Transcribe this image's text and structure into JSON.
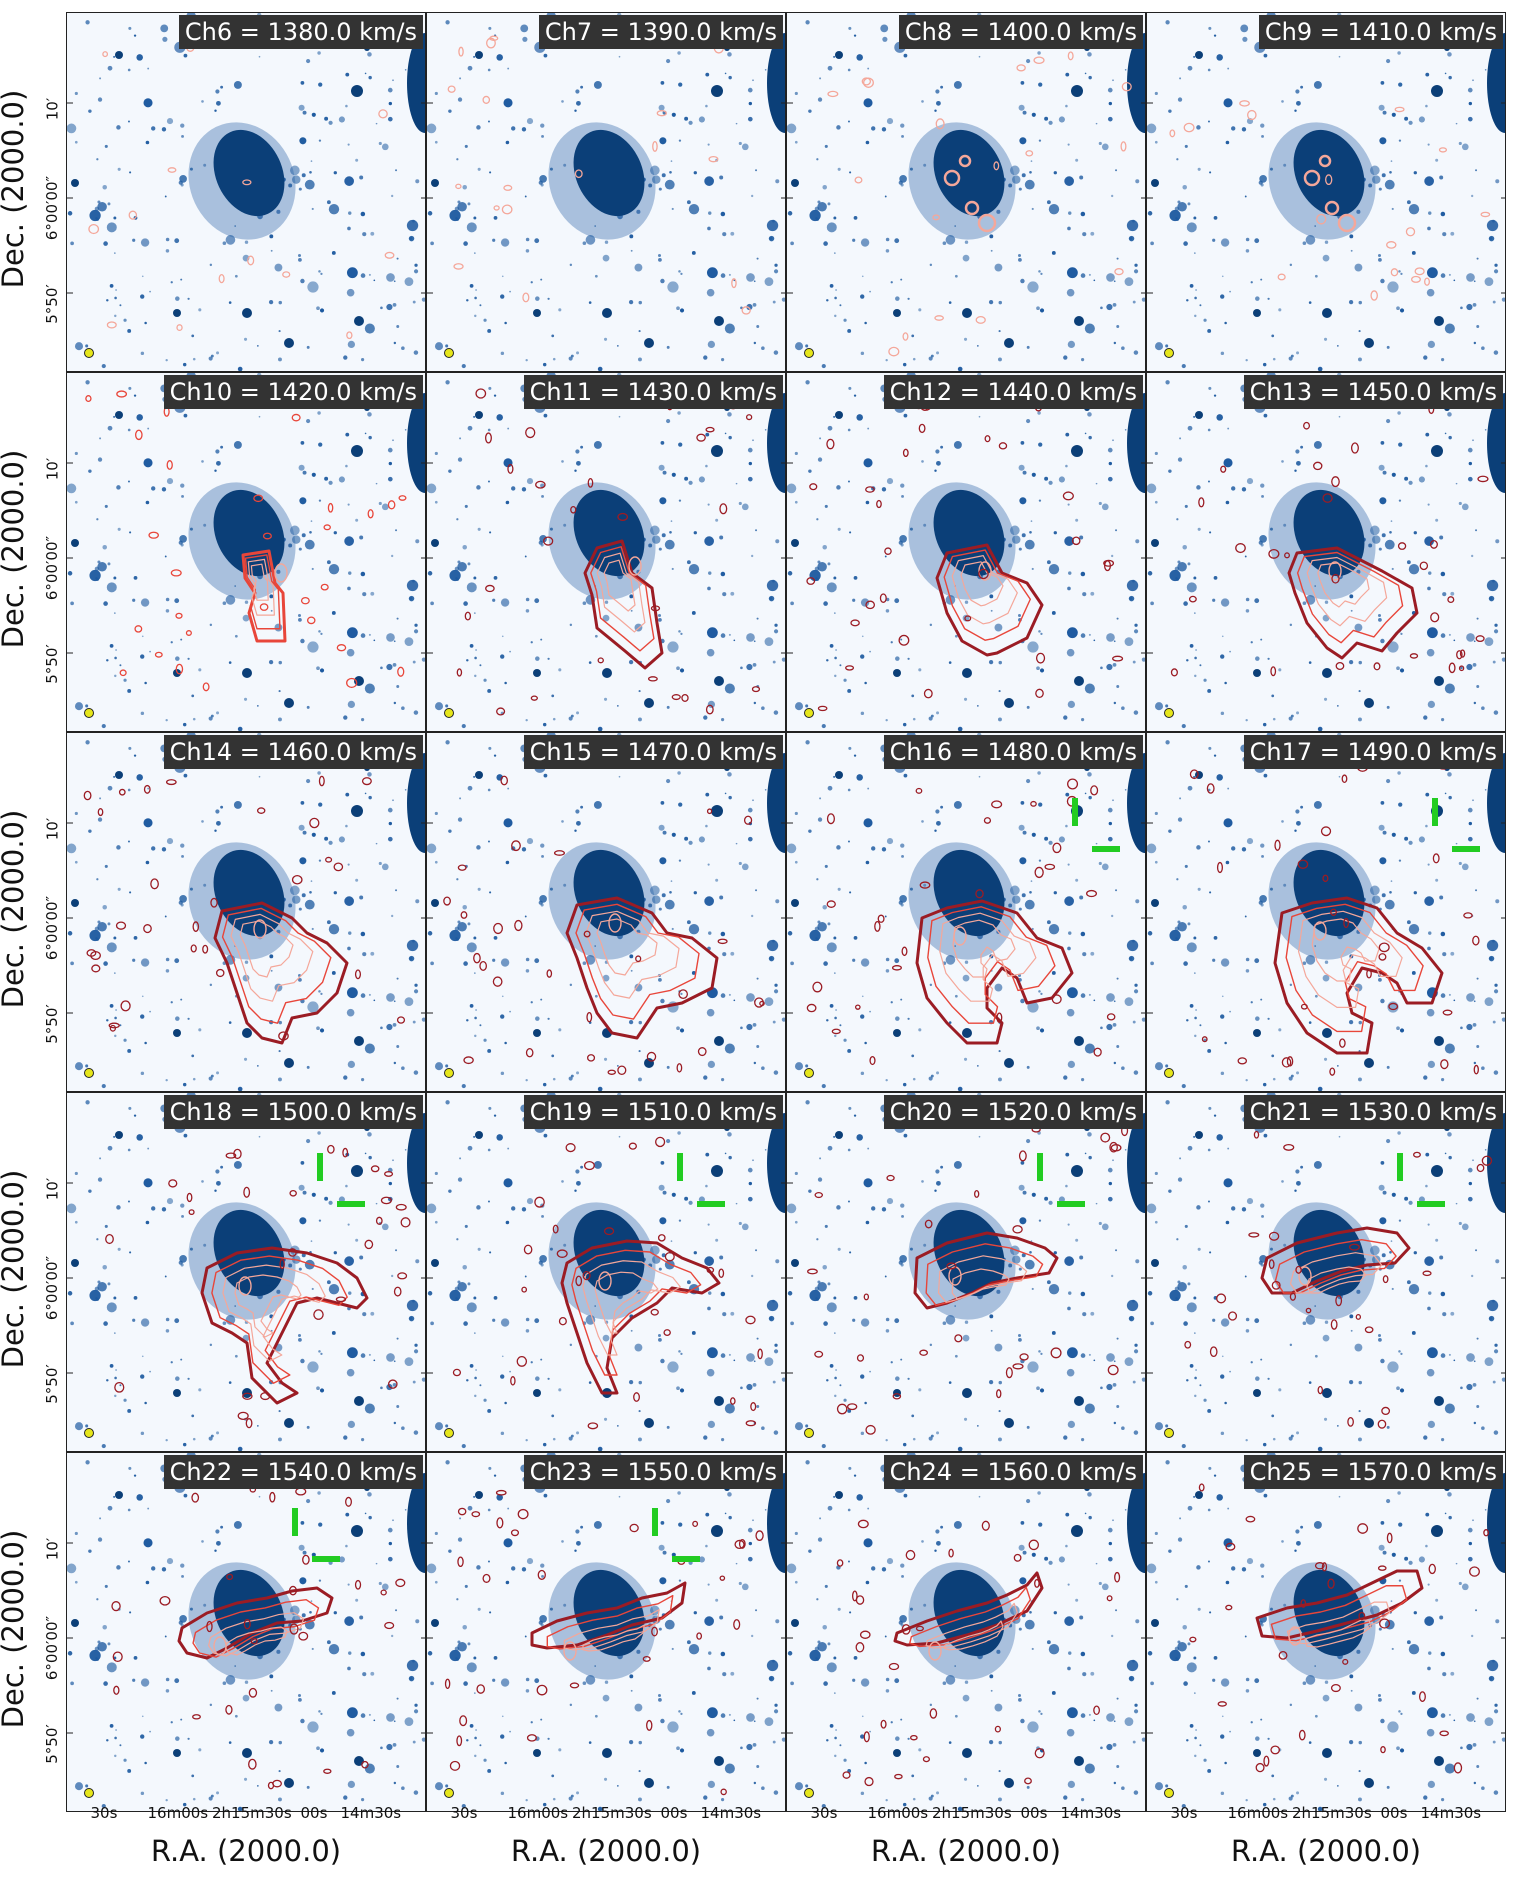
{
  "axes": {
    "ylabel": "Dec. (2000.0)",
    "xlabel": "R.A. (2000.0)",
    "yticks": [
      "10′",
      "6°00′00″",
      "5°50′"
    ],
    "xticks": [
      "30s",
      "16m00s",
      "2h15m30s",
      "00s",
      "14m30s"
    ]
  },
  "panels": [
    {
      "label": "Ch6 = 1380.0 km/s",
      "velocity": 1380.0
    },
    {
      "label": "Ch7 = 1390.0 km/s",
      "velocity": 1390.0
    },
    {
      "label": "Ch8 = 1400.0 km/s",
      "velocity": 1400.0
    },
    {
      "label": "Ch9 = 1410.0 km/s",
      "velocity": 1410.0
    },
    {
      "label": "Ch10 = 1420.0 km/s",
      "velocity": 1420.0
    },
    {
      "label": "Ch11 = 1430.0 km/s",
      "velocity": 1430.0
    },
    {
      "label": "Ch12 = 1440.0 km/s",
      "velocity": 1440.0
    },
    {
      "label": "Ch13 = 1450.0 km/s",
      "velocity": 1450.0
    },
    {
      "label": "Ch14 = 1460.0 km/s",
      "velocity": 1460.0
    },
    {
      "label": "Ch15 = 1470.0 km/s",
      "velocity": 1470.0
    },
    {
      "label": "Ch16 = 1480.0 km/s",
      "velocity": 1480.0
    },
    {
      "label": "Ch17 = 1490.0 km/s",
      "velocity": 1490.0
    },
    {
      "label": "Ch18 = 1500.0 km/s",
      "velocity": 1500.0
    },
    {
      "label": "Ch19 = 1510.0 km/s",
      "velocity": 1510.0
    },
    {
      "label": "Ch20 = 1520.0 km/s",
      "velocity": 1520.0
    },
    {
      "label": "Ch21 = 1530.0 km/s",
      "velocity": 1530.0
    },
    {
      "label": "Ch22 = 1540.0 km/s",
      "velocity": 1540.0
    },
    {
      "label": "Ch23 = 1550.0 km/s",
      "velocity": 1550.0
    },
    {
      "label": "Ch24 = 1560.0 km/s",
      "velocity": 1560.0
    },
    {
      "label": "Ch25 = 1570.0 km/s",
      "velocity": 1570.0
    }
  ],
  "colors": {
    "galaxy": "#0b3f78",
    "stars": "#1d5aa0",
    "background": "#f4f8fd",
    "contour_faint": "#f4a79a",
    "contour_mid": "#e8463a",
    "contour_strong": "#9b1c24",
    "marker": "#22cc22",
    "beam": "#e6e61a",
    "label_bg": "#333333"
  }
}
